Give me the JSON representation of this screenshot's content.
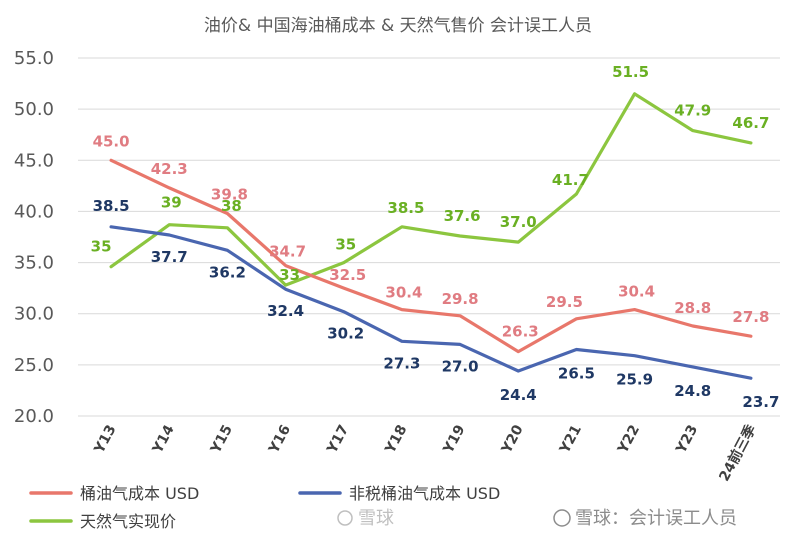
{
  "chart_data": {
    "type": "line",
    "title": "油价& 中国海油桶成本 & 天然气售价 会计误工人员",
    "categories": [
      "Y13",
      "Y14",
      "Y15",
      "Y16",
      "Y17",
      "Y18",
      "Y19",
      "Y20",
      "Y21",
      "Y22",
      "Y23",
      "24前三季"
    ],
    "ylim": [
      20,
      55
    ],
    "yticks": [
      "20.0",
      "25.0",
      "30.0",
      "35.0",
      "40.0",
      "45.0",
      "50.0",
      "55.0"
    ],
    "grid": true,
    "legend_position": "bottom-left",
    "series": [
      {
        "name": "桶油气成本 USD",
        "color": "#e8776b",
        "label_color": "#e07c82",
        "values": [
          45.0,
          42.3,
          39.8,
          34.7,
          32.5,
          30.4,
          29.8,
          26.3,
          29.5,
          30.4,
          28.8,
          27.8
        ],
        "labels": [
          "45.0",
          "42.3",
          "39.8",
          "34.7",
          "32.5",
          "30.4",
          "29.8",
          "26.3",
          "29.5",
          "30.4",
          "28.8",
          "27.8"
        ]
      },
      {
        "name": "非税桶油气成本 USD",
        "color": "#4a66b0",
        "label_color": "#1f3864",
        "values": [
          38.5,
          37.7,
          36.2,
          32.4,
          30.2,
          27.3,
          27.0,
          24.4,
          26.5,
          25.9,
          24.8,
          23.7
        ],
        "labels": [
          "38.5",
          "37.7",
          "36.2",
          "32.4",
          "30.2",
          "27.3",
          "27.0",
          "24.4",
          "26.5",
          "25.9",
          "24.8",
          "23.7"
        ]
      },
      {
        "name": "天然气实现价",
        "color": "#8cc63f",
        "label_color": "#6ab023",
        "values": [
          34.6,
          38.7,
          38.4,
          32.8,
          35.0,
          38.5,
          37.6,
          37.0,
          41.7,
          51.5,
          47.9,
          46.7
        ],
        "labels": [
          "35",
          "39",
          "38",
          "33",
          "35",
          "38.5",
          "37.6",
          "37.0",
          "41.7",
          "51.5",
          "47.9",
          "46.7"
        ]
      }
    ]
  },
  "watermark": {
    "brand": "雪球",
    "credit": "雪球：会计误工人员"
  }
}
